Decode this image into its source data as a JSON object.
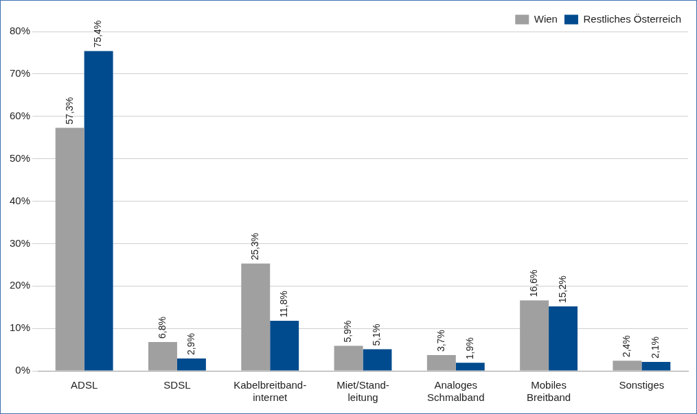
{
  "chart_data": {
    "type": "bar",
    "categories": [
      "ADSL",
      "SDSL",
      "Kabelbreitband-internet",
      "Miet/Stand-leitung",
      "Analoges Schmalband",
      "Mobiles Breitband",
      "Sonstiges"
    ],
    "series": [
      {
        "name": "Wien",
        "color": "#a0a0a0",
        "values": [
          57.3,
          6.8,
          25.3,
          5.9,
          3.7,
          16.6,
          2.4
        ],
        "value_labels": [
          "57,3%",
          "6,8%",
          "25,3%",
          "5,9%",
          "3,7%",
          "16,6%",
          "2,4%"
        ]
      },
      {
        "name": "Restliches Österreich",
        "color": "#004b8d",
        "values": [
          75.4,
          2.9,
          11.8,
          5.1,
          1.9,
          15.2,
          2.1
        ],
        "value_labels": [
          "75,4%",
          "2,9%",
          "11,8%",
          "5,1%",
          "1,9%",
          "15,2%",
          "2,1%"
        ]
      }
    ],
    "ylim": [
      0,
      80
    ],
    "yticks": [
      {
        "value": 0,
        "label": "0%"
      },
      {
        "value": 10,
        "label": "10%"
      },
      {
        "value": 20,
        "label": "20%"
      },
      {
        "value": 30,
        "label": "30%"
      },
      {
        "value": 40,
        "label": "40%"
      },
      {
        "value": 50,
        "label": "50%"
      },
      {
        "value": 60,
        "label": "60%"
      },
      {
        "value": 70,
        "label": "70%"
      },
      {
        "value": 80,
        "label": "80%"
      }
    ],
    "grid": "y",
    "legend": "top right"
  }
}
